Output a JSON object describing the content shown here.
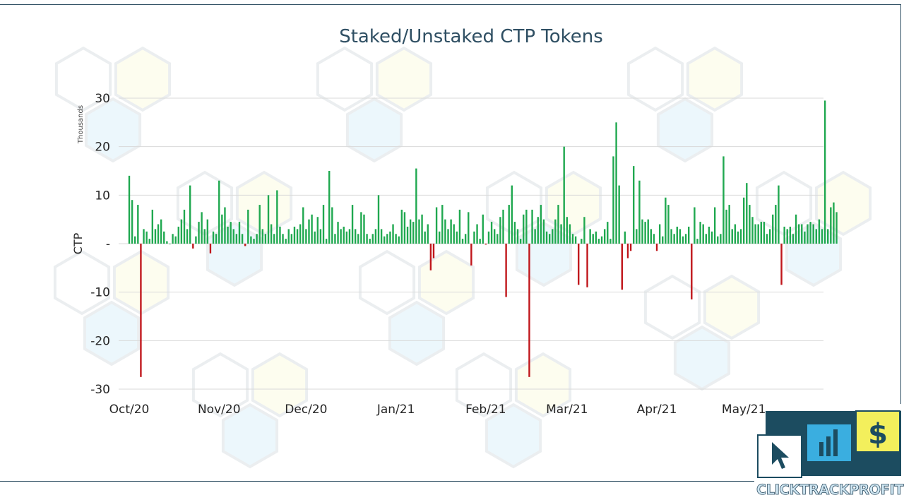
{
  "colors": {
    "positive": "#1fa84f",
    "negative": "#c0161b",
    "grid": "#d9d9d9",
    "title": "#2f4f63",
    "frame": "#2f4f63"
  },
  "logo": {
    "name": "CLICKTRACKPROFIT",
    "icons": [
      "cursor-arrow-icon",
      "bar-chart-icon",
      "dollar-icon"
    ],
    "colors": {
      "cursor": "#ffffff",
      "chart": "#3aaee0",
      "dollar": "#f3ef5c",
      "dark": "#1c4c60"
    }
  },
  "chart_data": {
    "type": "bar",
    "title": "Staked/Unstaked CTP Tokens",
    "ylabel": "CTP",
    "yunit": "Thousands",
    "ylim": [
      -30,
      30
    ],
    "yticks": [
      30,
      20,
      10,
      0,
      -10,
      -20,
      -30
    ],
    "ytick_labels": [
      "30",
      "20",
      "10",
      "-",
      "-10",
      "-20",
      "-30"
    ],
    "grid": true,
    "x_tick_labels": [
      "Oct/20",
      "Nov/20",
      "Dec/20",
      "Jan/21",
      "Feb/21",
      "Mar/21",
      "Apr/21",
      "May/21"
    ],
    "x_range": [
      "2020-10-01",
      "2021-05-28"
    ],
    "x_ticks": [
      "2020-10-01",
      "2020-11-01",
      "2020-12-01",
      "2021-01-01",
      "2021-02-01",
      "2021-03-01",
      "2021-04-01",
      "2021-05-01"
    ],
    "series": [
      {
        "start_date": "2020-10-01",
        "values": [
          14.0,
          9.0,
          1.5,
          8.0,
          -27.5,
          3.0,
          2.5,
          1.0,
          7.0,
          3.0,
          4.0,
          5.0,
          2.5,
          0.5,
          0.0,
          2.0,
          1.5,
          3.5,
          5.0,
          7.0,
          3.0,
          12.0,
          -1.0,
          1.5,
          4.5,
          6.5,
          3.0,
          5.0,
          -2.0,
          2.5,
          2.0,
          13.0,
          6.0,
          7.5,
          3.5,
          4.5,
          3.0,
          2.0,
          4.5,
          2.0,
          -0.5,
          7.0,
          1.5,
          1.0,
          2.0,
          8.0,
          3.0,
          2.0,
          10.0,
          4.0,
          2.0,
          11.0,
          3.5,
          2.0,
          1.0,
          3.0,
          2.0,
          3.5,
          3.0,
          4.0,
          7.5,
          3.0,
          5.0,
          6.0,
          2.5,
          5.5,
          3.0,
          8.0,
          1.0,
          15.0,
          7.5,
          2.0,
          4.5,
          3.0,
          3.5,
          2.5,
          3.0,
          8.0,
          3.0,
          2.0,
          6.5,
          6.0,
          2.0,
          1.0,
          2.0,
          3.0,
          10.0,
          3.0,
          1.5,
          2.0,
          2.5,
          4.0,
          2.0,
          1.5,
          7.0,
          6.5,
          3.5,
          5.0,
          4.5,
          15.5,
          5.0,
          6.0,
          2.5,
          4.0,
          -5.5,
          -3.0,
          7.5,
          2.5,
          8.0,
          5.0,
          3.0,
          5.0,
          4.0,
          2.5,
          7.0,
          1.0,
          2.0,
          6.5,
          -4.5,
          2.5,
          4.0,
          1.0,
          6.0,
          -0.2,
          2.5,
          4.5,
          3.0,
          2.0,
          5.5,
          7.0,
          -11.0,
          8.0,
          12.0,
          4.5,
          3.0,
          1.0,
          6.0,
          7.0,
          -27.5,
          7.0,
          3.0,
          5.5,
          8.0,
          5.0,
          2.5,
          2.0,
          3.0,
          5.0,
          8.0,
          4.0,
          20.0,
          5.5,
          4.0,
          2.0,
          1.5,
          -8.5,
          1.0,
          5.5,
          -9.0,
          3.0,
          2.0,
          2.5,
          1.0,
          1.5,
          3.0,
          4.5,
          1.0,
          18.0,
          25.0,
          12.0,
          -9.5,
          2.5,
          -3.0,
          -1.5,
          16.0,
          3.0,
          13.0,
          5.0,
          4.5,
          5.0,
          3.0,
          2.0,
          -1.5,
          4.0,
          1.5,
          9.5,
          8.0,
          3.0,
          2.0,
          3.5,
          3.0,
          1.5,
          2.0,
          3.5,
          -11.5,
          7.5,
          1.0,
          4.5,
          4.0,
          2.0,
          3.5,
          2.5,
          7.5,
          1.5,
          2.0,
          18.0,
          7.0,
          8.0,
          3.0,
          4.0,
          2.5,
          3.0,
          9.5,
          12.5,
          8.0,
          5.5,
          4.0,
          4.0,
          4.5,
          4.5,
          2.0,
          3.0,
          6.0,
          8.0,
          12.0,
          -8.5,
          3.5,
          3.0,
          3.5,
          2.0,
          6.0,
          4.0,
          4.0,
          2.5,
          4.0,
          4.5,
          4.0,
          3.0,
          5.0,
          3.0,
          29.5,
          3.0,
          7.5,
          8.5,
          6.5
        ]
      }
    ]
  }
}
